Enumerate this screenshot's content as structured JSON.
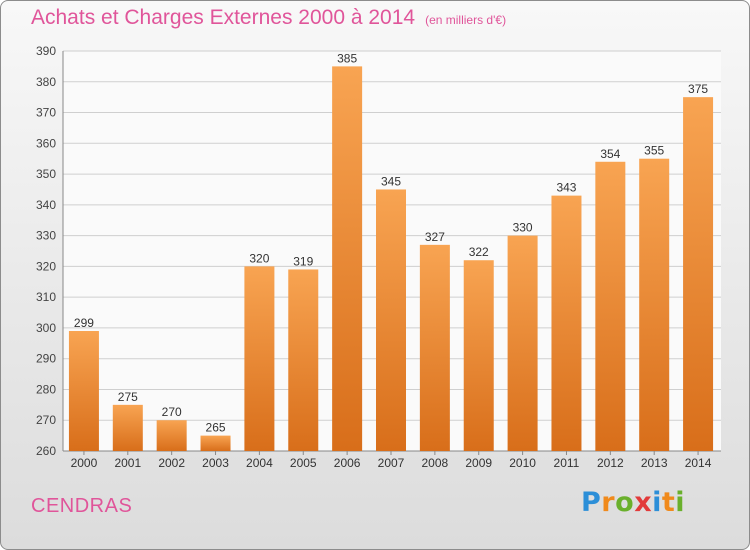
{
  "title": "Achats et Charges Externes 2000 à 2014",
  "subtitle": "(en milliers d'€)",
  "location": "CENDRAS",
  "brand": {
    "letters": [
      "P",
      "r",
      "o",
      "x",
      "i",
      "t",
      "i"
    ],
    "colors": [
      "#2c8fd8",
      "#f08a1c",
      "#6ab02c",
      "#e23a3a",
      "#2c8fd8",
      "#f08a1c",
      "#6ab02c"
    ]
  },
  "colors": {
    "title": "#e0559a",
    "bar_top": "#f8a452",
    "bar_bottom": "#d86e1a",
    "grid": "#cfcfcf"
  },
  "chart_data": {
    "type": "bar",
    "categories": [
      "2000",
      "2001",
      "2002",
      "2003",
      "2004",
      "2005",
      "2006",
      "2007",
      "2008",
      "2009",
      "2010",
      "2011",
      "2012",
      "2013",
      "2014"
    ],
    "values": [
      299,
      275,
      270,
      265,
      320,
      319,
      385,
      345,
      327,
      322,
      330,
      343,
      354,
      355,
      375
    ],
    "title": "Achats et Charges Externes 2000 à 2014",
    "ylim": [
      260,
      390
    ],
    "yticks": [
      260,
      270,
      280,
      290,
      300,
      310,
      320,
      330,
      340,
      350,
      360,
      370,
      380,
      390
    ],
    "grid": true,
    "data_labels": true
  }
}
